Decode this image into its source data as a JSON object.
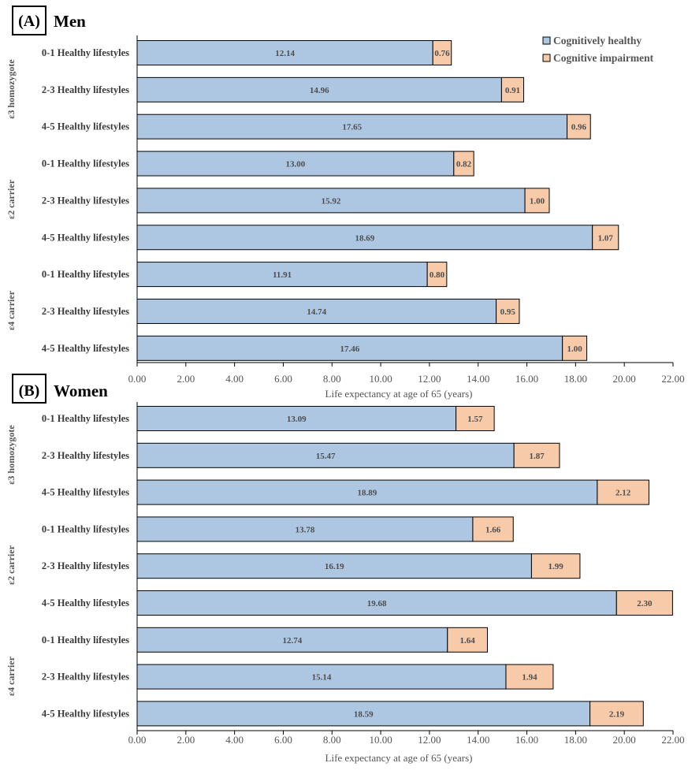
{
  "colors": {
    "healthy": "#adc7e3",
    "impairment": "#f7caa9"
  },
  "legend": {
    "healthy_label": "Cognitively healthy",
    "impairment_label": "Cognitive impairment"
  },
  "chart_data": [
    {
      "type": "bar",
      "orientation": "horizontal",
      "stacked": true,
      "panel_tag": "(A)",
      "title": "Men",
      "xlabel": "Life expectancy at age of 65 (years)",
      "xlim": [
        0,
        22
      ],
      "xticks": [
        "0.00",
        "2.00",
        "4.00",
        "6.00",
        "8.00",
        "10.00",
        "12.00",
        "14.00",
        "16.00",
        "18.00",
        "20.00",
        "22.00"
      ],
      "legend_position": "top-right",
      "groups": [
        {
          "label": "ε3 homozygote",
          "categories": [
            "0-1 Healthy lifestyles",
            "2-3 Healthy lifestyles",
            "4-5 Healthy lifestyles"
          ]
        },
        {
          "label": "ε2 carrier",
          "categories": [
            "0-1 Healthy lifestyles",
            "2-3 Healthy lifestyles",
            "4-5 Healthy lifestyles"
          ]
        },
        {
          "label": "ε4 carrier",
          "categories": [
            "0-1 Healthy lifestyles",
            "2-3 Healthy lifestyles",
            "4-5 Healthy lifestyles"
          ]
        }
      ],
      "series": [
        {
          "name": "Cognitively healthy",
          "values": [
            12.14,
            14.96,
            17.65,
            13.0,
            15.92,
            18.69,
            11.91,
            14.74,
            17.46
          ],
          "labels": [
            "12.14",
            "14.96",
            "17.65",
            "13.00",
            "15.92",
            "18.69",
            "11.91",
            "14.74",
            "17.46"
          ]
        },
        {
          "name": "Cognitive impairment",
          "values": [
            0.76,
            0.91,
            0.96,
            0.82,
            1.0,
            1.07,
            0.8,
            0.95,
            1.0
          ],
          "labels": [
            "0.76",
            "0.91",
            "0.96",
            "0.82",
            "1.00",
            "1.07",
            "0.80",
            "0.95",
            "1.00"
          ]
        }
      ]
    },
    {
      "type": "bar",
      "orientation": "horizontal",
      "stacked": true,
      "panel_tag": "(B)",
      "title": "Women",
      "xlabel": "Life expectancy at age of 65 (years)",
      "xlim": [
        0,
        22
      ],
      "xticks": [
        "0.00",
        "2.00",
        "4.00",
        "6.00",
        "8.00",
        "10.00",
        "12.00",
        "14.00",
        "16.00",
        "18.00",
        "20.00",
        "22.00"
      ],
      "groups": [
        {
          "label": "ε3 homozygote",
          "categories": [
            "0-1 Healthy lifestyles",
            "2-3 Healthy lifestyles",
            "4-5 Healthy lifestyles"
          ]
        },
        {
          "label": "ε2 carrier",
          "categories": [
            "0-1 Healthy lifestyles",
            "2-3 Healthy lifestyles",
            "4-5 Healthy lifestyles"
          ]
        },
        {
          "label": "ε4 carrier",
          "categories": [
            "0-1 Healthy lifestyles",
            "2-3 Healthy lifestyles",
            "4-5 Healthy lifestyles"
          ]
        }
      ],
      "series": [
        {
          "name": "Cognitively healthy",
          "values": [
            13.09,
            15.47,
            18.89,
            13.78,
            16.19,
            19.68,
            12.74,
            15.14,
            18.59
          ],
          "labels": [
            "13.09",
            "15.47",
            "18.89",
            "13.78",
            "16.19",
            "19.68",
            "12.74",
            "15.14",
            "18.59"
          ]
        },
        {
          "name": "Cognitive impairment",
          "values": [
            1.57,
            1.87,
            2.12,
            1.66,
            1.99,
            2.3,
            1.64,
            1.94,
            2.19
          ],
          "labels": [
            "1.57",
            "1.87",
            "2.12",
            "1.66",
            "1.99",
            "2.30",
            "1.64",
            "1.94",
            "2.19"
          ]
        }
      ]
    }
  ]
}
